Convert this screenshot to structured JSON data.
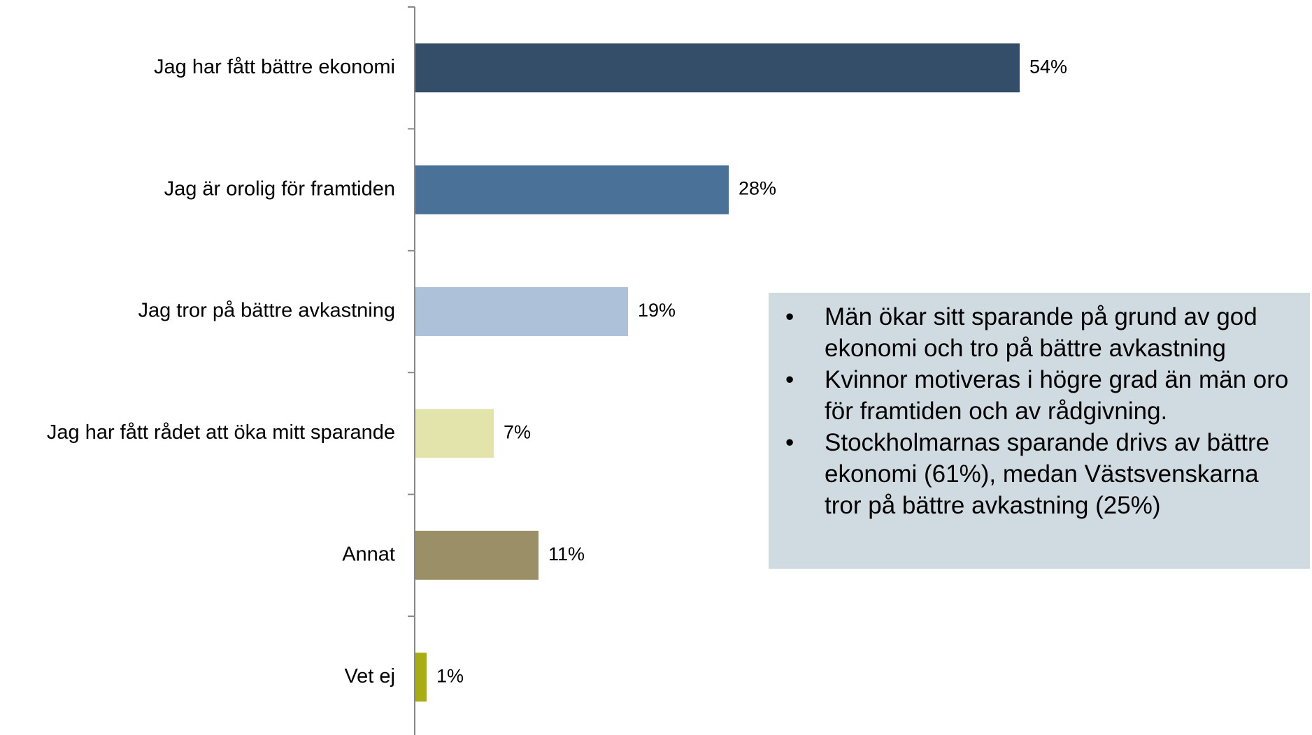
{
  "chart_data": {
    "type": "bar",
    "orientation": "horizontal",
    "categories": [
      "Jag har fått bättre ekonomi",
      "Jag är orolig för framtiden",
      "Jag tror på bättre avkastning",
      "Jag har fått rådet att öka mitt sparande",
      "Annat",
      "Vet ej"
    ],
    "values": [
      54,
      28,
      19,
      7,
      11,
      1
    ],
    "value_labels": [
      "54%",
      "28%",
      "19%",
      "7%",
      "11%",
      "1%"
    ],
    "colors": [
      "#344e6a",
      "#4a7299",
      "#adc2d8",
      "#e3e4ac",
      "#9a8f66",
      "#a7ad13"
    ],
    "annotations": [
      "Män ökar sitt sparande på grund av god ekonomi och tro på bättre avkastning",
      "Kvinnor motiveras i högre grad än män oro för framtiden och av rådgivning.",
      "Stockholmarnas sparande drivs av bättre ekonomi (61%), medan Västsvenskarna tror på bättre avkastning (25%)"
    ]
  }
}
